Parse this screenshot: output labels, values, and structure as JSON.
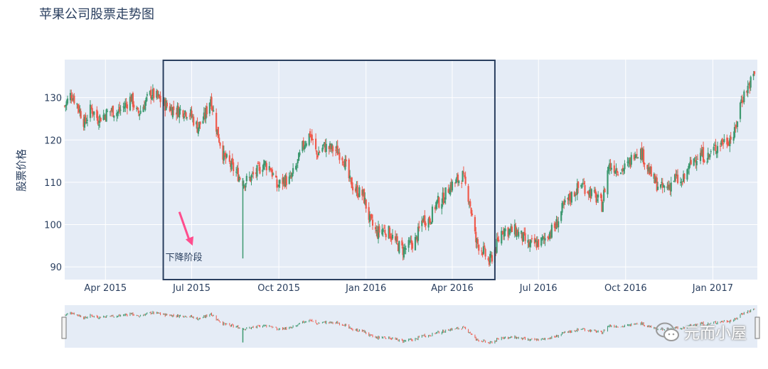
{
  "chart_data": {
    "type": "candlestick",
    "title": "苹果公司股票走势图",
    "ylabel": "股票价格",
    "xlabel": "",
    "y_ticks": [
      90,
      100,
      110,
      120,
      130
    ],
    "ylim": [
      87,
      139
    ],
    "x_ticks": [
      {
        "label": "Apr 2015",
        "date": "2015-04-01"
      },
      {
        "label": "Jul 2015",
        "date": "2015-07-01"
      },
      {
        "label": "Oct 2015",
        "date": "2015-10-01"
      },
      {
        "label": "Jan 2016",
        "date": "2016-01-01"
      },
      {
        "label": "Apr 2016",
        "date": "2016-04-01"
      },
      {
        "label": "Jul 2016",
        "date": "2016-07-01"
      },
      {
        "label": "Oct 2016",
        "date": "2016-10-01"
      },
      {
        "label": "Jan 2017",
        "date": "2017-01-01"
      }
    ],
    "xlim": [
      "2015-02-17",
      "2017-02-17"
    ],
    "increasing_color": "#3d9970",
    "decreasing_color": "#ef5a4c",
    "weekly_close": [
      [
        "2015-02-17",
        128.0
      ],
      [
        "2015-02-24",
        131.0
      ],
      [
        "2015-03-03",
        128.0
      ],
      [
        "2015-03-10",
        124.0
      ],
      [
        "2015-03-17",
        127.5
      ],
      [
        "2015-03-24",
        125.0
      ],
      [
        "2015-03-31",
        126.0
      ],
      [
        "2015-04-07",
        127.0
      ],
      [
        "2015-04-14",
        126.5
      ],
      [
        "2015-04-21",
        128.0
      ],
      [
        "2015-04-28",
        130.0
      ],
      [
        "2015-05-05",
        126.0
      ],
      [
        "2015-05-12",
        128.5
      ],
      [
        "2015-05-19",
        131.0
      ],
      [
        "2015-05-26",
        130.0
      ],
      [
        "2015-06-02",
        128.5
      ],
      [
        "2015-06-09",
        127.5
      ],
      [
        "2015-06-16",
        127.0
      ],
      [
        "2015-06-23",
        127.0
      ],
      [
        "2015-06-30",
        126.0
      ],
      [
        "2015-07-07",
        123.0
      ],
      [
        "2015-07-14",
        125.0
      ],
      [
        "2015-07-21",
        130.0
      ],
      [
        "2015-07-28",
        122.0
      ],
      [
        "2015-08-04",
        116.0
      ],
      [
        "2015-08-11",
        114.0
      ],
      [
        "2015-08-18",
        112.0
      ],
      [
        "2015-08-25",
        110.0
      ],
      [
        "2015-09-01",
        111.0
      ],
      [
        "2015-09-08",
        112.5
      ],
      [
        "2015-09-15",
        114.5
      ],
      [
        "2015-09-22",
        113.5
      ],
      [
        "2015-09-29",
        109.0
      ],
      [
        "2015-10-06",
        110.5
      ],
      [
        "2015-10-13",
        110.5
      ],
      [
        "2015-10-20",
        114.0
      ],
      [
        "2015-10-27",
        119.0
      ],
      [
        "2015-11-03",
        121.5
      ],
      [
        "2015-11-10",
        116.5
      ],
      [
        "2015-11-17",
        118.5
      ],
      [
        "2015-11-24",
        118.0
      ],
      [
        "2015-12-01",
        117.5
      ],
      [
        "2015-12-08",
        116.0
      ],
      [
        "2015-12-15",
        110.0
      ],
      [
        "2015-12-22",
        108.0
      ],
      [
        "2015-12-29",
        107.0
      ],
      [
        "2016-01-05",
        101.0
      ],
      [
        "2016-01-12",
        98.0
      ],
      [
        "2016-01-19",
        99.0
      ],
      [
        "2016-01-26",
        98.0
      ],
      [
        "2016-02-02",
        95.5
      ],
      [
        "2016-02-09",
        94.0
      ],
      [
        "2016-02-16",
        95.0
      ],
      [
        "2016-02-23",
        96.5
      ],
      [
        "2016-03-01",
        101.5
      ],
      [
        "2016-03-08",
        101.0
      ],
      [
        "2016-03-15",
        105.0
      ],
      [
        "2016-03-22",
        106.0
      ],
      [
        "2016-03-29",
        109.0
      ],
      [
        "2016-04-05",
        110.0
      ],
      [
        "2016-04-12",
        111.5
      ],
      [
        "2016-04-19",
        106.0
      ],
      [
        "2016-04-26",
        96.0
      ],
      [
        "2016-05-03",
        94.0
      ],
      [
        "2016-05-10",
        91.0
      ],
      [
        "2016-05-17",
        94.5
      ],
      [
        "2016-05-24",
        99.0
      ],
      [
        "2016-05-31",
        98.5
      ],
      [
        "2016-06-07",
        98.5
      ],
      [
        "2016-06-14",
        97.0
      ],
      [
        "2016-06-21",
        95.0
      ],
      [
        "2016-06-28",
        95.5
      ],
      [
        "2016-07-05",
        96.0
      ],
      [
        "2016-07-12",
        98.0
      ],
      [
        "2016-07-19",
        99.5
      ],
      [
        "2016-07-26",
        103.5
      ],
      [
        "2016-08-02",
        106.0
      ],
      [
        "2016-08-09",
        108.0
      ],
      [
        "2016-08-16",
        109.5
      ],
      [
        "2016-08-23",
        108.0
      ],
      [
        "2016-08-30",
        106.5
      ],
      [
        "2016-09-06",
        104.5
      ],
      [
        "2016-09-13",
        114.0
      ],
      [
        "2016-09-20",
        113.5
      ],
      [
        "2016-09-27",
        113.0
      ],
      [
        "2016-10-04",
        114.0
      ],
      [
        "2016-10-11",
        117.5
      ],
      [
        "2016-10-18",
        117.0
      ],
      [
        "2016-10-25",
        113.0
      ],
      [
        "2016-11-01",
        110.0
      ],
      [
        "2016-11-08",
        108.5
      ],
      [
        "2016-11-15",
        109.0
      ],
      [
        "2016-11-22",
        111.0
      ],
      [
        "2016-11-29",
        109.5
      ],
      [
        "2016-12-06",
        113.0
      ],
      [
        "2016-12-13",
        116.0
      ],
      [
        "2016-12-20",
        116.5
      ],
      [
        "2016-12-27",
        116.0
      ],
      [
        "2017-01-03",
        118.0
      ],
      [
        "2017-01-10",
        119.5
      ],
      [
        "2017-01-17",
        120.0
      ],
      [
        "2017-01-24",
        121.5
      ],
      [
        "2017-01-31",
        129.5
      ],
      [
        "2017-02-07",
        132.5
      ],
      [
        "2017-02-14",
        135.5
      ]
    ],
    "annotation": {
      "text": "下降阶段",
      "box_start": "2015-06-01",
      "box_end": "2016-05-16",
      "arrow_from": [
        "2015-06-18",
        103.0
      ],
      "arrow_to": [
        "2015-07-02",
        95.0
      ]
    },
    "rangeslider": true
  },
  "watermark": {
    "text": "元而小屋"
  }
}
